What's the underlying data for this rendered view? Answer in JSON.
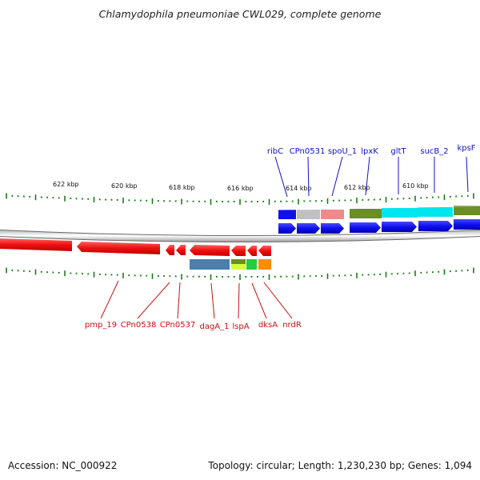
{
  "title": "Chlamydophila pneumoniae CWL029, complete genome",
  "footer": {
    "accession": "Accession: NC_000922",
    "summary": "Topology: circular; Length: 1,230,230 bp; Genes: 1,094"
  },
  "colors": {
    "forward_cds": "#1010ee",
    "reverse_cds": "#ee1010",
    "tick": "#1a7a1a",
    "top_label": "#1010cc",
    "bottom_label": "#cc1010"
  },
  "scale_labels": [
    "622 kbp",
    "620 kbp",
    "618 kbp",
    "616 kbp",
    "614 kbp",
    "612 kbp",
    "610 kbp"
  ],
  "top_genes": [
    "ribC",
    "CPn0531",
    "spoU_1",
    "lpxK",
    "gltT",
    "sucB_2",
    "kpsF"
  ],
  "bottom_genes": [
    "pmp_19",
    "CPn0538",
    "CPn0537",
    "dagA_1",
    "lspA",
    "dksA",
    "nrdR"
  ]
}
